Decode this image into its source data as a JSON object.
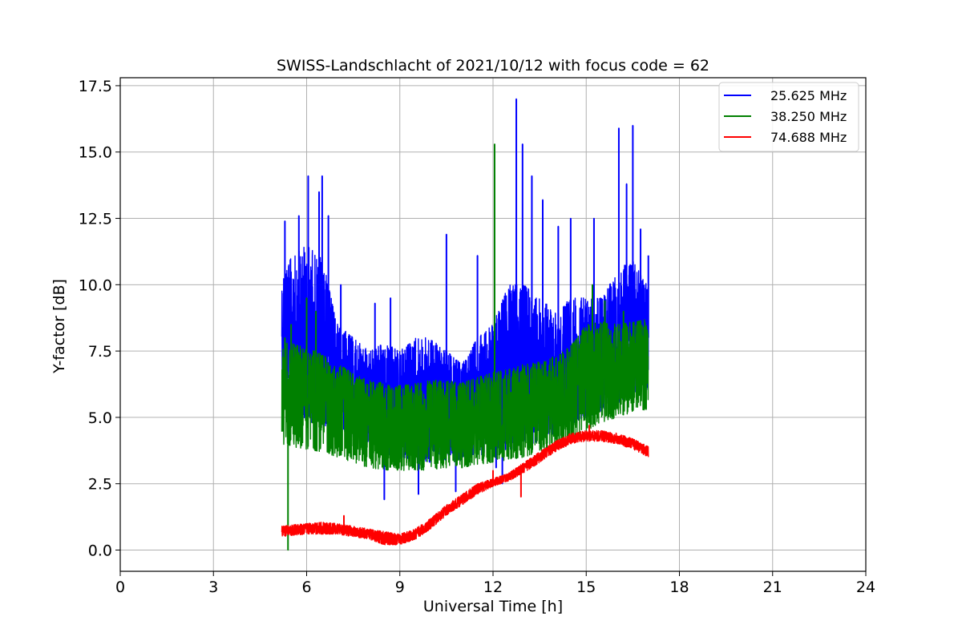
{
  "chart_data": {
    "type": "line",
    "title": "SWISS-Landschlacht of 2021/10/12 with focus code = 62",
    "xlabel": "Universal Time [h]",
    "ylabel": "Y-factor [dB]",
    "xlim": [
      0,
      24
    ],
    "ylim": [
      -0.8,
      17.8
    ],
    "xticks": [
      0,
      3,
      6,
      9,
      12,
      15,
      18,
      21,
      24
    ],
    "yticks": [
      0.0,
      2.5,
      5.0,
      7.5,
      10.0,
      12.5,
      15.0,
      17.5
    ],
    "xtick_labels": [
      "0",
      "3",
      "6",
      "9",
      "12",
      "15",
      "18",
      "21",
      "24"
    ],
    "ytick_labels": [
      "0.0",
      "2.5",
      "5.0",
      "7.5",
      "10.0",
      "12.5",
      "15.0",
      "17.5"
    ],
    "grid": true,
    "legend_position": "top-right",
    "time_range": [
      5.2,
      17.0
    ],
    "series": [
      {
        "name": "25.625 MHz",
        "color": "#0000ff",
        "envelope": {
          "x": [
            5.2,
            5.5,
            6.0,
            6.5,
            7.0,
            7.5,
            8.0,
            8.5,
            9.0,
            9.5,
            10.0,
            10.5,
            11.0,
            11.5,
            12.0,
            12.5,
            13.0,
            13.5,
            14.0,
            14.5,
            15.0,
            15.5,
            16.0,
            16.5,
            17.0
          ],
          "low": [
            5.5,
            5.0,
            4.8,
            4.7,
            4.4,
            4.2,
            3.8,
            3.6,
            3.5,
            3.4,
            3.3,
            3.4,
            3.4,
            3.5,
            3.6,
            3.7,
            3.9,
            4.1,
            4.4,
            4.7,
            5.0,
            5.2,
            5.5,
            5.8,
            6.0
          ],
          "high": [
            10.5,
            11.0,
            11.5,
            11.0,
            8.5,
            8.0,
            7.5,
            7.8,
            7.5,
            8.0,
            8.0,
            7.5,
            7.0,
            8.0,
            8.5,
            10.0,
            10.0,
            9.5,
            9.0,
            9.5,
            9.5,
            9.5,
            10.5,
            11.0,
            10.0
          ]
        },
        "peaks": [
          {
            "x": 5.3,
            "y": 12.4
          },
          {
            "x": 5.75,
            "y": 12.6
          },
          {
            "x": 6.05,
            "y": 14.1
          },
          {
            "x": 6.4,
            "y": 13.5
          },
          {
            "x": 6.5,
            "y": 14.1
          },
          {
            "x": 6.7,
            "y": 12.6
          },
          {
            "x": 7.1,
            "y": 10.0
          },
          {
            "x": 8.2,
            "y": 9.3
          },
          {
            "x": 8.5,
            "y": 1.9
          },
          {
            "x": 8.7,
            "y": 9.5
          },
          {
            "x": 9.6,
            "y": 2.1
          },
          {
            "x": 10.5,
            "y": 11.9
          },
          {
            "x": 10.8,
            "y": 2.2
          },
          {
            "x": 11.5,
            "y": 11.1
          },
          {
            "x": 12.1,
            "y": 3.1
          },
          {
            "x": 12.3,
            "y": 2.5
          },
          {
            "x": 12.75,
            "y": 17.0
          },
          {
            "x": 12.95,
            "y": 15.3
          },
          {
            "x": 13.25,
            "y": 14.1
          },
          {
            "x": 13.6,
            "y": 13.2
          },
          {
            "x": 14.1,
            "y": 12.2
          },
          {
            "x": 14.5,
            "y": 12.5
          },
          {
            "x": 15.25,
            "y": 12.5
          },
          {
            "x": 16.05,
            "y": 15.9
          },
          {
            "x": 16.3,
            "y": 13.8
          },
          {
            "x": 16.5,
            "y": 16.0
          },
          {
            "x": 16.75,
            "y": 12.1
          },
          {
            "x": 17.0,
            "y": 11.1
          }
        ]
      },
      {
        "name": "38.250 MHz",
        "color": "#008000",
        "envelope": {
          "x": [
            5.2,
            5.5,
            6.0,
            6.5,
            7.0,
            7.5,
            8.0,
            8.5,
            9.0,
            9.5,
            10.0,
            10.5,
            11.0,
            11.5,
            12.0,
            12.5,
            13.0,
            13.5,
            14.0,
            14.5,
            15.0,
            15.5,
            16.0,
            16.5,
            17.0
          ],
          "low": [
            4.0,
            3.9,
            3.8,
            3.7,
            3.5,
            3.3,
            3.1,
            3.0,
            3.0,
            3.0,
            3.0,
            3.1,
            3.1,
            3.2,
            3.3,
            3.4,
            3.5,
            3.7,
            3.9,
            4.1,
            4.5,
            4.8,
            5.0,
            5.2,
            5.3
          ],
          "high": [
            7.8,
            7.8,
            7.6,
            7.4,
            7.0,
            6.7,
            6.4,
            6.3,
            6.2,
            6.3,
            6.4,
            6.4,
            6.3,
            6.5,
            6.7,
            6.8,
            7.0,
            7.1,
            7.3,
            7.7,
            8.5,
            8.6,
            8.5,
            8.6,
            8.7
          ]
        },
        "peaks": [
          {
            "x": 5.3,
            "y": 8.0
          },
          {
            "x": 5.4,
            "y": 0.0
          },
          {
            "x": 5.5,
            "y": 8.5
          },
          {
            "x": 6.0,
            "y": 9.5
          },
          {
            "x": 6.3,
            "y": 9.0
          },
          {
            "x": 12.05,
            "y": 15.3
          },
          {
            "x": 15.2,
            "y": 10.0
          },
          {
            "x": 15.6,
            "y": 9.4
          },
          {
            "x": 16.2,
            "y": 9.0
          }
        ]
      },
      {
        "name": "74.688 MHz",
        "color": "#ff0000",
        "envelope": {
          "x": [
            5.2,
            5.5,
            6.0,
            6.5,
            7.0,
            7.5,
            8.0,
            8.5,
            9.0,
            9.5,
            10.0,
            10.5,
            11.0,
            11.5,
            12.0,
            12.5,
            13.0,
            13.5,
            14.0,
            14.5,
            15.0,
            15.5,
            16.0,
            16.5,
            17.0
          ],
          "low": [
            0.5,
            0.55,
            0.6,
            0.6,
            0.6,
            0.5,
            0.4,
            0.2,
            0.2,
            0.4,
            0.8,
            1.3,
            1.7,
            2.1,
            2.4,
            2.6,
            2.9,
            3.3,
            3.7,
            4.0,
            4.1,
            4.1,
            4.0,
            3.8,
            3.5
          ],
          "high": [
            0.9,
            0.95,
            1.0,
            1.05,
            1.0,
            0.9,
            0.8,
            0.7,
            0.6,
            0.8,
            1.2,
            1.7,
            2.1,
            2.5,
            2.7,
            2.9,
            3.3,
            3.7,
            4.1,
            4.4,
            4.5,
            4.5,
            4.4,
            4.2,
            3.9
          ]
        },
        "peaks": [
          {
            "x": 7.2,
            "y": 1.3
          },
          {
            "x": 12.0,
            "y": 3.0
          },
          {
            "x": 12.9,
            "y": 2.0
          },
          {
            "x": 15.1,
            "y": 4.7
          }
        ]
      }
    ]
  }
}
